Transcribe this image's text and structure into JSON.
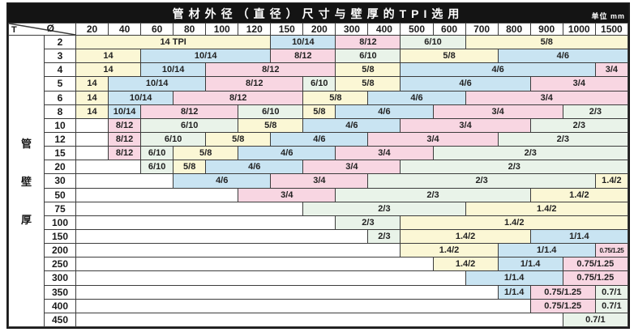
{
  "title_bar": {
    "title": "管材外径（直径）尺寸与壁厚的TPI选用",
    "unit": "单位 mm"
  },
  "corner": {
    "row_axis": "T",
    "col_axis": "Ø"
  },
  "side_label_chars": [
    "管",
    "壁",
    "厚"
  ],
  "palette": {
    "yellow": "#fbf7d5",
    "blue": "#c9e4f2",
    "pink": "#f8d6e2",
    "green": "#e9f3e9",
    "white": "#ffffff"
  },
  "chart_data": {
    "type": "table",
    "title": "管材外径（直径）尺寸与壁厚的TPI选用",
    "unit": "mm",
    "col_axis_label": "Ø",
    "row_axis_label": "T",
    "side_label": "管壁厚",
    "columns": [
      "20",
      "40",
      "60",
      "80",
      "100",
      "120",
      "150",
      "200",
      "300",
      "400",
      "500",
      "600",
      "700",
      "800",
      "900",
      "1000",
      "1500"
    ],
    "rows": [
      {
        "label": "2",
        "cells": [
          {
            "value": "14 TPI",
            "span": 6,
            "color": "yellow"
          },
          {
            "value": "10/14",
            "span": 2,
            "color": "blue"
          },
          {
            "value": "8/12",
            "span": 2,
            "color": "pink"
          },
          {
            "value": "6/10",
            "span": 2,
            "color": "green"
          },
          {
            "value": "5/8",
            "span": 5,
            "color": "yellow"
          }
        ]
      },
      {
        "label": "3",
        "cells": [
          {
            "value": "14",
            "span": 2,
            "color": "yellow"
          },
          {
            "value": "10/14",
            "span": 4,
            "color": "blue"
          },
          {
            "value": "8/12",
            "span": 2,
            "color": "pink"
          },
          {
            "value": "6/10",
            "span": 2,
            "color": "green"
          },
          {
            "value": "5/8",
            "span": 3,
            "color": "yellow"
          },
          {
            "value": "4/6",
            "span": 4,
            "color": "blue"
          }
        ]
      },
      {
        "label": "4",
        "cells": [
          {
            "value": "14",
            "span": 2,
            "color": "yellow"
          },
          {
            "value": "10/14",
            "span": 2,
            "color": "blue"
          },
          {
            "value": "8/12",
            "span": 4,
            "color": "pink"
          },
          {
            "value": "5/8",
            "span": 2,
            "color": "yellow"
          },
          {
            "value": "4/6",
            "span": 6,
            "color": "blue"
          },
          {
            "value": "3/4",
            "span": 1,
            "color": "pink"
          }
        ]
      },
      {
        "label": "5",
        "cells": [
          {
            "value": "14",
            "span": 1,
            "color": "yellow"
          },
          {
            "value": "10/14",
            "span": 3,
            "color": "blue"
          },
          {
            "value": "8/12",
            "span": 3,
            "color": "pink"
          },
          {
            "value": "6/10",
            "span": 1,
            "color": "green"
          },
          {
            "value": "5/8",
            "span": 2,
            "color": "yellow"
          },
          {
            "value": "4/6",
            "span": 4,
            "color": "blue"
          },
          {
            "value": "3/4",
            "span": 3,
            "color": "pink"
          }
        ]
      },
      {
        "label": "6",
        "cells": [
          {
            "value": "14",
            "span": 1,
            "color": "yellow"
          },
          {
            "value": "10/14",
            "span": 2,
            "color": "blue"
          },
          {
            "value": "8/12",
            "span": 4,
            "color": "pink"
          },
          {
            "value": "5/8",
            "span": 2,
            "color": "yellow"
          },
          {
            "value": "4/6",
            "span": 3,
            "color": "blue"
          },
          {
            "value": "3/4",
            "span": 5,
            "color": "pink"
          }
        ]
      },
      {
        "label": "8",
        "cells": [
          {
            "value": "14",
            "span": 1,
            "color": "yellow"
          },
          {
            "value": "10/14",
            "span": 1,
            "color": "blue"
          },
          {
            "value": "8/12",
            "span": 3,
            "color": "pink"
          },
          {
            "value": "6/10",
            "span": 2,
            "color": "green"
          },
          {
            "value": "5/8",
            "span": 1,
            "color": "yellow"
          },
          {
            "value": "4/6",
            "span": 3,
            "color": "blue"
          },
          {
            "value": "3/4",
            "span": 4,
            "color": "pink"
          },
          {
            "value": "2/3",
            "span": 2,
            "color": "green"
          }
        ]
      },
      {
        "label": "10",
        "cells": [
          {
            "value": "",
            "span": 1,
            "color": "white"
          },
          {
            "value": "8/12",
            "span": 1,
            "color": "pink"
          },
          {
            "value": "6/10",
            "span": 3,
            "color": "green"
          },
          {
            "value": "5/8",
            "span": 2,
            "color": "yellow"
          },
          {
            "value": "4/6",
            "span": 3,
            "color": "blue"
          },
          {
            "value": "3/4",
            "span": 4,
            "color": "pink"
          },
          {
            "value": "2/3",
            "span": 3,
            "color": "green"
          }
        ]
      },
      {
        "label": "12",
        "cells": [
          {
            "value": "",
            "span": 1,
            "color": "white"
          },
          {
            "value": "8/12",
            "span": 1,
            "color": "pink"
          },
          {
            "value": "6/10",
            "span": 2,
            "color": "green"
          },
          {
            "value": "5/8",
            "span": 2,
            "color": "yellow"
          },
          {
            "value": "4/6",
            "span": 3,
            "color": "blue"
          },
          {
            "value": "3/4",
            "span": 4,
            "color": "pink"
          },
          {
            "value": "2/3",
            "span": 4,
            "color": "green"
          }
        ]
      },
      {
        "label": "15",
        "cells": [
          {
            "value": "",
            "span": 1,
            "color": "white"
          },
          {
            "value": "8/12",
            "span": 1,
            "color": "pink"
          },
          {
            "value": "6/10",
            "span": 1,
            "color": "green"
          },
          {
            "value": "5/8",
            "span": 2,
            "color": "yellow"
          },
          {
            "value": "4/6",
            "span": 3,
            "color": "blue"
          },
          {
            "value": "3/4",
            "span": 3,
            "color": "pink"
          },
          {
            "value": "2/3",
            "span": 6,
            "color": "green"
          }
        ]
      },
      {
        "label": "20",
        "cells": [
          {
            "value": "",
            "span": 2,
            "color": "white"
          },
          {
            "value": "6/10",
            "span": 1,
            "color": "green"
          },
          {
            "value": "5/8",
            "span": 1,
            "color": "yellow"
          },
          {
            "value": "4/6",
            "span": 3,
            "color": "blue"
          },
          {
            "value": "3/4",
            "span": 3,
            "color": "pink"
          },
          {
            "value": "2/3",
            "span": 7,
            "color": "green"
          }
        ]
      },
      {
        "label": "30",
        "cells": [
          {
            "value": "",
            "span": 3,
            "color": "white"
          },
          {
            "value": "4/6",
            "span": 3,
            "color": "blue"
          },
          {
            "value": "3/4",
            "span": 3,
            "color": "pink"
          },
          {
            "value": "2/3",
            "span": 7,
            "color": "green"
          },
          {
            "value": "1.4/2",
            "span": 1,
            "color": "yellow"
          }
        ]
      },
      {
        "label": "50",
        "cells": [
          {
            "value": "",
            "span": 5,
            "color": "white"
          },
          {
            "value": "3/4",
            "span": 3,
            "color": "pink"
          },
          {
            "value": "2/3",
            "span": 6,
            "color": "green"
          },
          {
            "value": "1.4/2",
            "span": 3,
            "color": "yellow"
          }
        ]
      },
      {
        "label": "75",
        "cells": [
          {
            "value": "",
            "span": 7,
            "color": "white"
          },
          {
            "value": "2/3",
            "span": 5,
            "color": "green"
          },
          {
            "value": "1.4/2",
            "span": 5,
            "color": "yellow"
          }
        ]
      },
      {
        "label": "100",
        "cells": [
          {
            "value": "",
            "span": 8,
            "color": "white"
          },
          {
            "value": "2/3",
            "span": 2,
            "color": "green"
          },
          {
            "value": "1.4/2",
            "span": 7,
            "color": "yellow"
          }
        ]
      },
      {
        "label": "150",
        "cells": [
          {
            "value": "",
            "span": 9,
            "color": "white"
          },
          {
            "value": "2/3",
            "span": 1,
            "color": "green"
          },
          {
            "value": "1.4/2",
            "span": 4,
            "color": "yellow"
          },
          {
            "value": "1/1.4",
            "span": 3,
            "color": "blue"
          }
        ]
      },
      {
        "label": "200",
        "cells": [
          {
            "value": "",
            "span": 10,
            "color": "white"
          },
          {
            "value": "1.4/2",
            "span": 3,
            "color": "yellow"
          },
          {
            "value": "1/1.4",
            "span": 3,
            "color": "blue"
          },
          {
            "value": "0.75/1.25",
            "span": 1,
            "color": "pink"
          }
        ]
      },
      {
        "label": "250",
        "cells": [
          {
            "value": "",
            "span": 11,
            "color": "white"
          },
          {
            "value": "1.4/2",
            "span": 2,
            "color": "yellow"
          },
          {
            "value": "1/1.4",
            "span": 2,
            "color": "blue"
          },
          {
            "value": "0.75/1.25",
            "span": 2,
            "color": "pink"
          }
        ]
      },
      {
        "label": "300",
        "cells": [
          {
            "value": "",
            "span": 12,
            "color": "white"
          },
          {
            "value": "1/1.4",
            "span": 3,
            "color": "blue"
          },
          {
            "value": "0.75/1.25",
            "span": 2,
            "color": "pink"
          }
        ]
      },
      {
        "label": "350",
        "cells": [
          {
            "value": "",
            "span": 13,
            "color": "white"
          },
          {
            "value": "1/1.4",
            "span": 1,
            "color": "blue"
          },
          {
            "value": "0.75/1.25",
            "span": 2,
            "color": "pink"
          },
          {
            "value": "0.7/1",
            "span": 1,
            "color": "green"
          }
        ]
      },
      {
        "label": "400",
        "cells": [
          {
            "value": "",
            "span": 14,
            "color": "white"
          },
          {
            "value": "0.75/1.25",
            "span": 2,
            "color": "pink"
          },
          {
            "value": "0.7/1",
            "span": 1,
            "color": "green"
          }
        ]
      },
      {
        "label": "450",
        "cells": [
          {
            "value": "",
            "span": 15,
            "color": "white"
          },
          {
            "value": "0.7/1",
            "span": 2,
            "color": "green"
          }
        ]
      }
    ]
  }
}
